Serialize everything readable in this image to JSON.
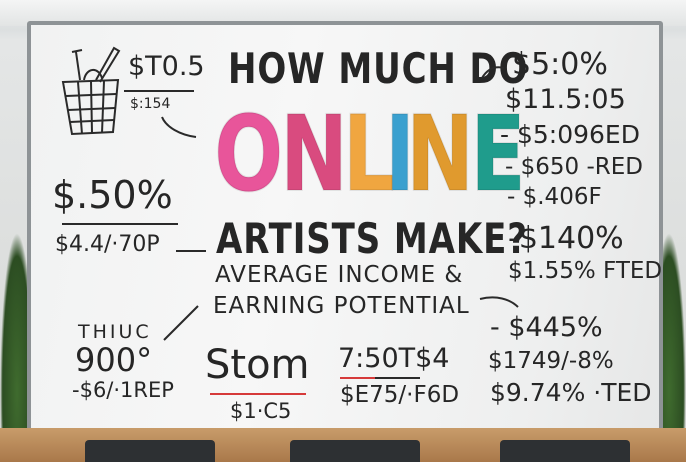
{
  "title": {
    "line1": "HOW MUCH DO",
    "highlight": "ONLINE",
    "line2": "ARTISTS MAKE?",
    "sub1": "AVERAGE INCOME &",
    "sub2": "EARNING POTENTIAL"
  },
  "online_letters": [
    {
      "ch": "O",
      "color": "#e8559a"
    },
    {
      "ch": "N",
      "color": "#d94b7f"
    },
    {
      "ch": "L",
      "color": "#f0a640"
    },
    {
      "ch": "I",
      "color": "#3aa0cf"
    },
    {
      "ch": "N",
      "color": "#e09a2e"
    },
    {
      "ch": "E",
      "color": "#1f9c8c"
    }
  ],
  "left": {
    "top_value": "$T0.5",
    "top_sub": "$:154",
    "mid_value": "$.50%",
    "mid_sub": "$4.4/·70P",
    "bottom_label": "THIUC",
    "bottom_value": "900°",
    "bottom_sub": "-$6/·1REP"
  },
  "center": {
    "a_value": "Stom",
    "a_sub": "$1·C5",
    "b_value": "7:50T$4",
    "b_sub": "$E75/·F6D"
  },
  "right": [
    "$5:0%",
    "$11.5:05",
    "- $5:096ED",
    "- $650 -RED",
    "- $.406F",
    "-$140%",
    "$1.55% FTED",
    "- $445%",
    "$1749/-8%",
    "$9.74% ·TED"
  ],
  "colors": {
    "underline_red": "#d63a3a",
    "marker": "#262626"
  }
}
